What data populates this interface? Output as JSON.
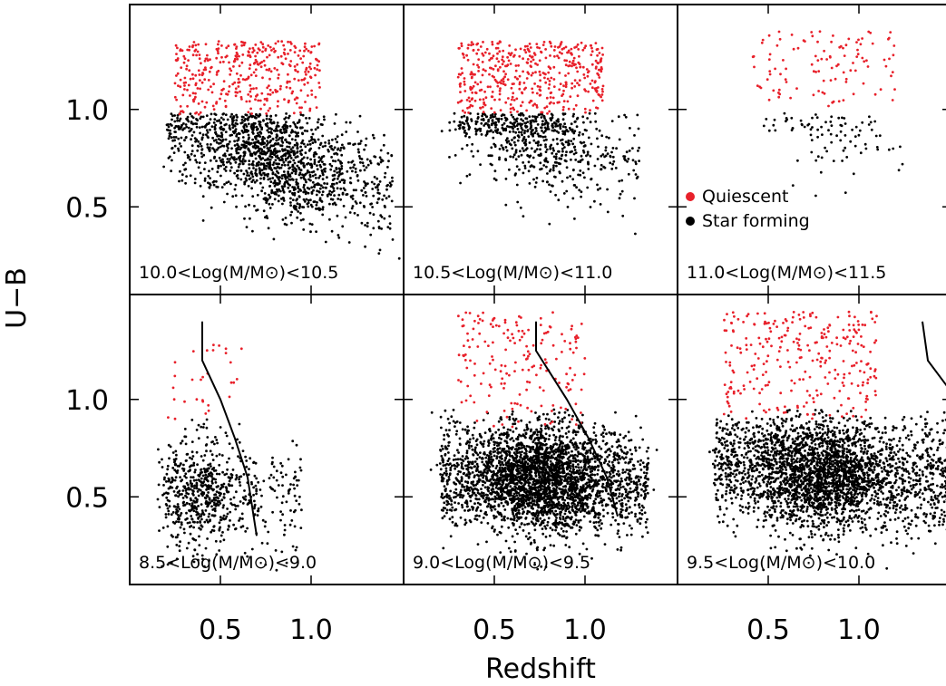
{
  "chart_data": {
    "type": "scatter",
    "xlabel": "Redshift",
    "ylabel": "U−B",
    "xlim": [
      0.0,
      1.5
    ],
    "ylim": [
      0.05,
      1.5
    ],
    "xticks": [
      "0.5",
      "1.0"
    ],
    "yticks": [
      "0.5",
      "1.0"
    ],
    "grid": false,
    "legend": {
      "placement": "inside panel 11.0<Log(M/M⊙)<11.5",
      "entries": [
        {
          "label": "Quiescent",
          "color": "#e8202a"
        },
        {
          "label": "Star forming",
          "color": "#000000"
        }
      ]
    },
    "colors": {
      "quiescent": "#e8202a",
      "star_forming": "#000000"
    },
    "panels": [
      {
        "row": 0,
        "col": 0,
        "label": "10.0<Log(M/M⊙)<10.5",
        "star_forming": {
          "n": 1500,
          "x_range": [
            0.2,
            1.45
          ],
          "y_center": 0.75,
          "peak_x": 0.8
        },
        "quiescent": {
          "n": 380,
          "x_range": [
            0.25,
            1.05
          ],
          "y_range": [
            0.97,
            1.35
          ]
        }
      },
      {
        "row": 0,
        "col": 1,
        "label": "10.5<Log(M/M⊙)<11.0",
        "star_forming": {
          "n": 650,
          "x_range": [
            0.25,
            1.3
          ],
          "y_center": 0.85,
          "peak_x": 0.75
        },
        "quiescent": {
          "n": 450,
          "x_range": [
            0.3,
            1.1
          ],
          "y_range": [
            0.97,
            1.35
          ]
        }
      },
      {
        "row": 0,
        "col": 2,
        "label": "11.0<Log(M/M⊙)<11.5",
        "star_forming": {
          "n": 90,
          "x_range": [
            0.4,
            1.25
          ],
          "y_center": 0.9,
          "peak_x": 0.85
        },
        "quiescent": {
          "n": 110,
          "x_range": [
            0.4,
            1.2
          ],
          "y_range": [
            1.0,
            1.4
          ]
        }
      },
      {
        "row": 1,
        "col": 0,
        "label": "8.5<Log(M/M⊙)<9.0",
        "star_forming": {
          "n": 700,
          "x_range": [
            0.2,
            0.95
          ],
          "y_center": 0.52,
          "peak_x": 0.38
        },
        "quiescent": {
          "n": 30,
          "x_range": [
            0.2,
            0.62
          ],
          "y_range": [
            0.85,
            1.3
          ]
        },
        "cutoff_line": [
          [
            0.4,
            1.4
          ],
          [
            0.4,
            1.2
          ],
          [
            0.5,
            1.0
          ],
          [
            0.58,
            0.8
          ],
          [
            0.65,
            0.6
          ],
          [
            0.7,
            0.3
          ]
        ]
      },
      {
        "row": 1,
        "col": 1,
        "label": "9.0<Log(M/M⊙)<9.5",
        "star_forming": {
          "n": 3200,
          "x_range": [
            0.2,
            1.35
          ],
          "y_center": 0.6,
          "peak_x": 0.75
        },
        "quiescent": {
          "n": 180,
          "x_range": [
            0.3,
            1.0
          ],
          "y_range": [
            0.85,
            1.45
          ]
        },
        "cutoff_line": [
          [
            0.73,
            1.4
          ],
          [
            0.73,
            1.25
          ],
          [
            0.9,
            1.0
          ],
          [
            1.02,
            0.8
          ],
          [
            1.12,
            0.6
          ],
          [
            1.18,
            0.4
          ]
        ]
      },
      {
        "row": 1,
        "col": 2,
        "label": "9.5<Log(M/M⊙)<10.0",
        "star_forming": {
          "n": 3000,
          "x_range": [
            0.2,
            1.5
          ],
          "y_center": 0.62,
          "peak_x": 0.8
        },
        "quiescent": {
          "n": 280,
          "x_range": [
            0.25,
            1.1
          ],
          "y_range": [
            0.9,
            1.45
          ]
        },
        "cutoff_line": [
          [
            1.35,
            1.4
          ],
          [
            1.38,
            1.2
          ],
          [
            1.5,
            1.05
          ]
        ]
      }
    ]
  }
}
